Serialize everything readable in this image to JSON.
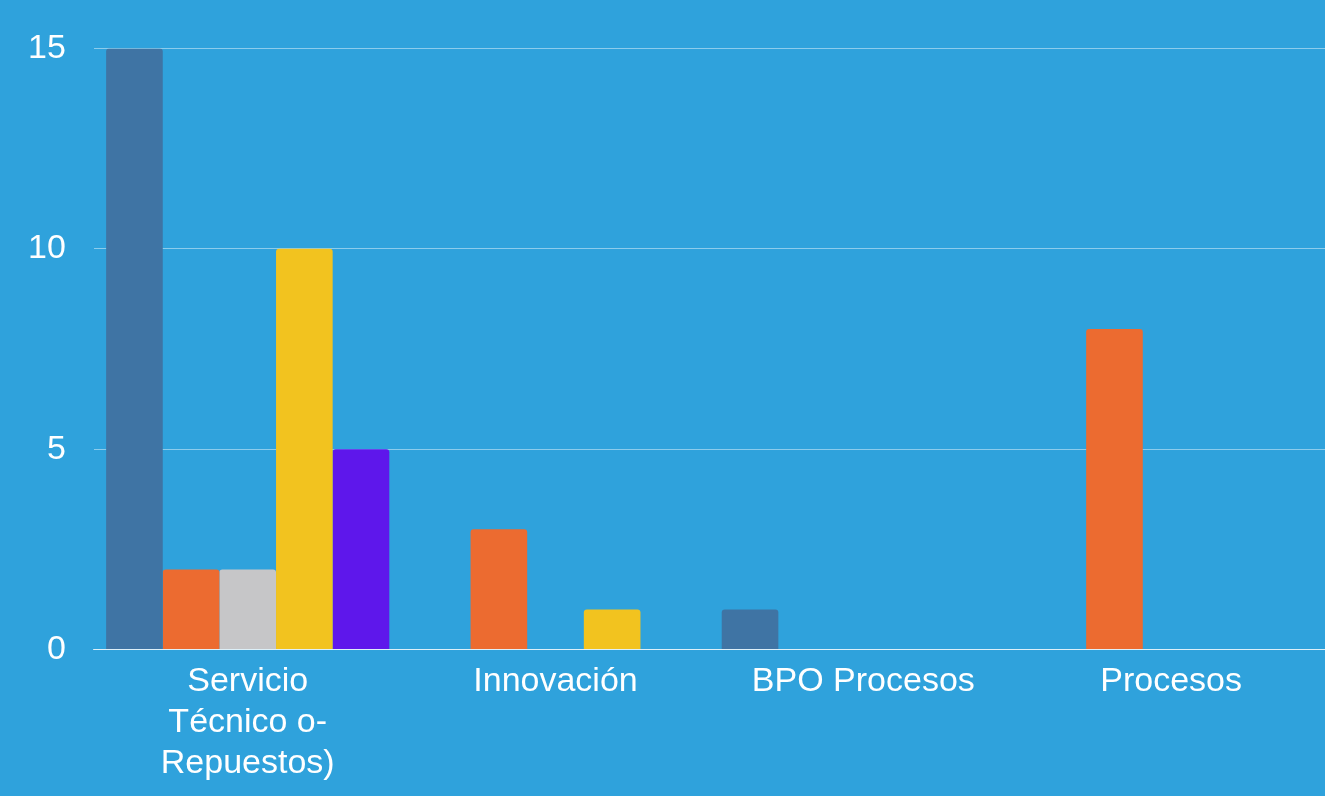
{
  "chart_data": {
    "type": "bar",
    "categories": [
      "Servicio Técnico o- Repuestos)",
      "Innovación",
      "BPO Procesos",
      "Procesos"
    ],
    "series": [
      {
        "color": "#3f74a4",
        "values": [
          15,
          null,
          1,
          null
        ]
      },
      {
        "color": "#ec6b30",
        "values": [
          2,
          3,
          null,
          8
        ]
      },
      {
        "color": "#c6c6c8",
        "values": [
          2,
          null,
          null,
          null
        ]
      },
      {
        "color": "#f2c31f",
        "values": [
          10,
          1,
          null,
          null
        ]
      },
      {
        "color": "#5e17eb",
        "values": [
          5,
          null,
          null,
          null
        ]
      }
    ],
    "ylim": [
      0,
      15
    ],
    "yticks": [
      0,
      5,
      10,
      15
    ],
    "grid": "y",
    "legend": false
  }
}
